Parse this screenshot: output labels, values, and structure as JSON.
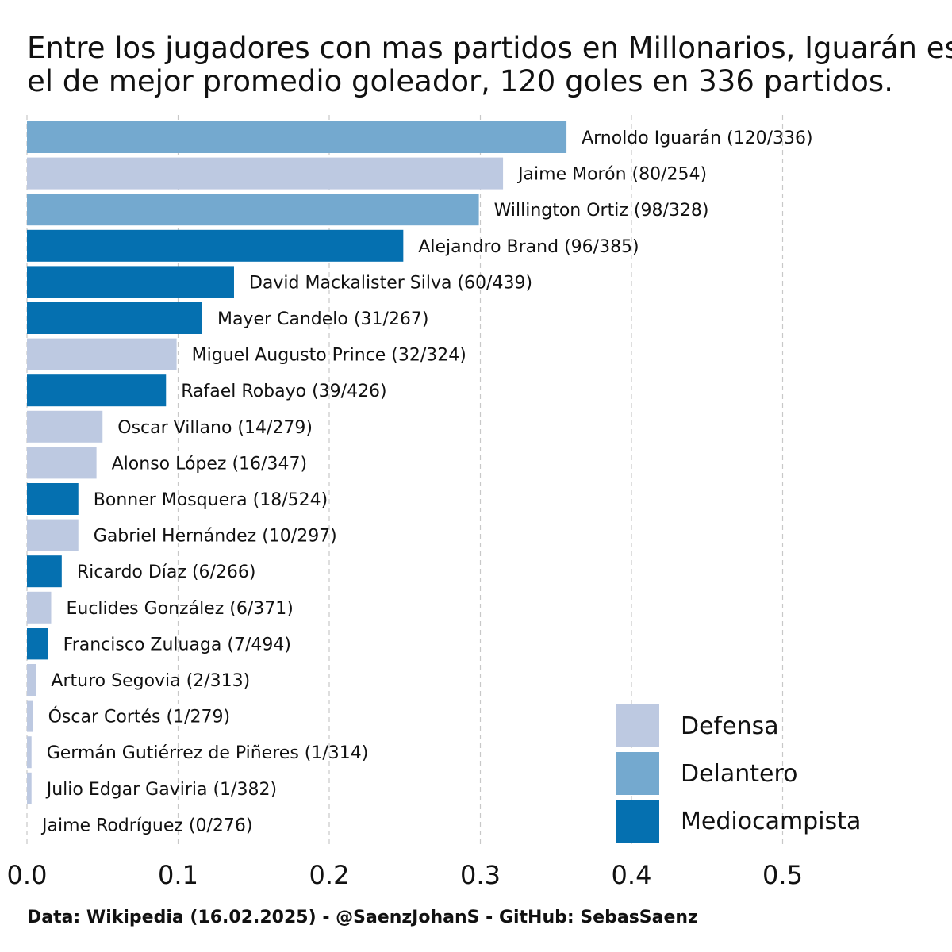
{
  "title_lines": [
    "Entre los jugadores con mas partidos en Millonarios, Iguarán es",
    "el de mejor promedio goleador, 120 goles en 336 partidos."
  ],
  "caption": "Data: Wikipedia (16.02.2025) - @SaenzJohanS - GitHub: SebasSaenz",
  "colors": {
    "Defensa": "#bdc9e1",
    "Delantero": "#74a9cf",
    "Mediocampista": "#0570b0"
  },
  "chart_data": {
    "type": "bar",
    "orientation": "horizontal",
    "xlim": [
      0,
      0.58
    ],
    "x_ticks": [
      "0.0",
      "0.1",
      "0.2",
      "0.3",
      "0.4",
      "0.5"
    ],
    "x_tick_values": [
      0,
      0.1,
      0.2,
      0.3,
      0.4,
      0.5
    ],
    "grid": "vertical-dashed",
    "legend": {
      "position": "bottom-right",
      "entries": [
        "Defensa",
        "Delantero",
        "Mediocampista"
      ]
    },
    "bars": [
      {
        "label": "Arnoldo Iguarán (120/336)",
        "goals": 120,
        "matches": 336,
        "value": 0.357,
        "position": "Delantero"
      },
      {
        "label": "Jaime Morón (80/254)",
        "goals": 80,
        "matches": 254,
        "value": 0.315,
        "position": "Defensa"
      },
      {
        "label": "Willington Ortiz (98/328)",
        "goals": 98,
        "matches": 328,
        "value": 0.299,
        "position": "Delantero"
      },
      {
        "label": "Alejandro Brand (96/385)",
        "goals": 96,
        "matches": 385,
        "value": 0.249,
        "position": "Mediocampista"
      },
      {
        "label": "David Mackalister Silva (60/439)",
        "goals": 60,
        "matches": 439,
        "value": 0.137,
        "position": "Mediocampista"
      },
      {
        "label": "Mayer Candelo (31/267)",
        "goals": 31,
        "matches": 267,
        "value": 0.116,
        "position": "Mediocampista"
      },
      {
        "label": "Miguel Augusto Prince (32/324)",
        "goals": 32,
        "matches": 324,
        "value": 0.099,
        "position": "Defensa"
      },
      {
        "label": "Rafael Robayo (39/426)",
        "goals": 39,
        "matches": 426,
        "value": 0.092,
        "position": "Mediocampista"
      },
      {
        "label": "Oscar Villano (14/279)",
        "goals": 14,
        "matches": 279,
        "value": 0.05,
        "position": "Defensa"
      },
      {
        "label": "Alonso López (16/347)",
        "goals": 16,
        "matches": 347,
        "value": 0.046,
        "position": "Defensa"
      },
      {
        "label": "Bonner Mosquera (18/524)",
        "goals": 18,
        "matches": 524,
        "value": 0.034,
        "position": "Mediocampista"
      },
      {
        "label": "Gabriel Hernández (10/297)",
        "goals": 10,
        "matches": 297,
        "value": 0.034,
        "position": "Defensa"
      },
      {
        "label": "Ricardo Díaz (6/266)",
        "goals": 6,
        "matches": 266,
        "value": 0.023,
        "position": "Mediocampista"
      },
      {
        "label": "Euclides González (6/371)",
        "goals": 6,
        "matches": 371,
        "value": 0.016,
        "position": "Defensa"
      },
      {
        "label": "Francisco Zuluaga (7/494)",
        "goals": 7,
        "matches": 494,
        "value": 0.014,
        "position": "Mediocampista"
      },
      {
        "label": "Arturo Segovia (2/313)",
        "goals": 2,
        "matches": 313,
        "value": 0.006,
        "position": "Defensa"
      },
      {
        "label": "Óscar Cortés (1/279)",
        "goals": 1,
        "matches": 279,
        "value": 0.004,
        "position": "Defensa"
      },
      {
        "label": "Germán Gutiérrez de Piñeres (1/314)",
        "goals": 1,
        "matches": 314,
        "value": 0.003,
        "position": "Defensa"
      },
      {
        "label": "Julio Edgar Gaviria (1/382)",
        "goals": 1,
        "matches": 382,
        "value": 0.003,
        "position": "Defensa"
      },
      {
        "label": "Jaime Rodríguez (0/276)",
        "goals": 0,
        "matches": 276,
        "value": 0.0,
        "position": "Defensa"
      }
    ]
  }
}
